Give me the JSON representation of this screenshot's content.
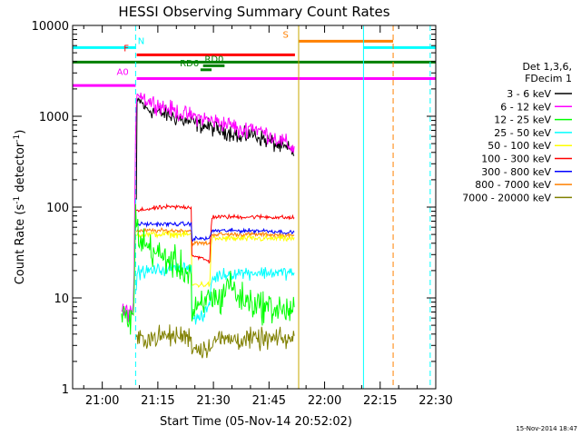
{
  "chart_data": {
    "type": "line",
    "title": "HESSI Observing Summary Count Rates",
    "xlabel": "Start Time (05-Nov-14 20:52:02)",
    "ylabel": "Count Rate (s⁻¹ detector⁻¹)",
    "ylabel_main": "Count Rate (s",
    "ylabel_sup1": "-1",
    "ylabel_mid": " detector",
    "ylabel_sup2": "-1",
    "ylabel_end": ")",
    "y_scale": "log",
    "x_unit": "minutes since 20:52:02",
    "xlim": [
      0,
      98
    ],
    "ylim": [
      1,
      10000
    ],
    "x_ticks": [
      {
        "x": 8,
        "label": "21:00"
      },
      {
        "x": 23,
        "label": "21:15"
      },
      {
        "x": 38,
        "label": "21:30"
      },
      {
        "x": 53,
        "label": "21:45"
      },
      {
        "x": 68,
        "label": "22:00"
      },
      {
        "x": 83,
        "label": "22:15"
      },
      {
        "x": 98,
        "label": "22:30"
      }
    ],
    "y_ticks": [
      {
        "v": 1,
        "label": "1"
      },
      {
        "v": 10,
        "label": "10"
      },
      {
        "v": 100,
        "label": "100"
      },
      {
        "v": 1000,
        "label": "1000"
      },
      {
        "v": 10000,
        "label": "10000"
      }
    ],
    "legend_title": [
      "Det 1,3,6,",
      "FDecim 1"
    ],
    "legend_position": "right",
    "series": [
      {
        "name": "3 - 6 keV",
        "color": "#000000",
        "noise": 0.08,
        "points": [
          [
            17.0,
            1
          ],
          [
            17.3,
            1300
          ],
          [
            18,
            1500
          ],
          [
            20,
            1200
          ],
          [
            25,
            1050
          ],
          [
            30,
            900
          ],
          [
            35,
            800
          ],
          [
            40,
            700
          ],
          [
            44,
            650
          ],
          [
            45,
            550
          ],
          [
            48,
            650
          ],
          [
            52,
            550
          ],
          [
            57,
            450
          ],
          [
            60,
            400
          ]
        ]
      },
      {
        "name": "6 - 12 keV",
        "color": "#ff00ff",
        "noise": 0.08,
        "points": [
          [
            13.0,
            7
          ],
          [
            14.0,
            7
          ],
          [
            15.0,
            7
          ],
          [
            16.5,
            7
          ],
          [
            17.0,
            800
          ],
          [
            17.3,
            1900
          ],
          [
            18,
            1800
          ],
          [
            20,
            1500
          ],
          [
            25,
            1250
          ],
          [
            30,
            1050
          ],
          [
            35,
            950
          ],
          [
            40,
            850
          ],
          [
            44,
            780
          ],
          [
            45,
            650
          ],
          [
            48,
            790
          ],
          [
            52,
            650
          ],
          [
            57,
            520
          ],
          [
            60,
            430
          ]
        ]
      },
      {
        "name": "12 - 25 keV",
        "color": "#00ff00",
        "noise": 0.15,
        "points": [
          [
            13.0,
            6
          ],
          [
            14.0,
            6
          ],
          [
            15.0,
            6
          ],
          [
            16.5,
            6
          ],
          [
            17.0,
            100
          ],
          [
            17.3,
            60
          ],
          [
            18,
            45
          ],
          [
            20,
            38
          ],
          [
            23,
            30
          ],
          [
            26,
            26
          ],
          [
            29,
            22
          ],
          [
            31,
            19
          ],
          [
            32.0,
            19
          ],
          [
            32.1,
            6
          ],
          [
            33,
            7
          ],
          [
            35,
            8
          ],
          [
            36,
            9
          ],
          [
            37,
            11
          ],
          [
            38,
            10
          ],
          [
            40,
            9.5
          ],
          [
            41,
            12
          ],
          [
            42,
            16
          ],
          [
            43,
            13
          ],
          [
            45,
            10
          ],
          [
            48,
            9
          ],
          [
            52,
            8
          ],
          [
            56,
            7.5
          ],
          [
            60,
            7
          ]
        ]
      },
      {
        "name": "25 - 50 keV",
        "color": "#00ffff",
        "noise": 0.06,
        "points": [
          [
            17.0,
            8
          ],
          [
            17.3,
            19
          ],
          [
            22,
            20
          ],
          [
            26,
            21
          ],
          [
            31,
            22
          ],
          [
            32.0,
            22
          ],
          [
            32.1,
            6
          ],
          [
            35,
            6
          ],
          [
            36,
            7
          ],
          [
            37,
            9
          ],
          [
            37.5,
            16
          ],
          [
            40,
            18
          ],
          [
            45,
            19
          ],
          [
            50,
            19
          ],
          [
            55,
            19
          ],
          [
            60,
            19
          ]
        ]
      },
      {
        "name": "50 - 100 keV",
        "color": "#ffff00",
        "noise": 0.03,
        "points": [
          [
            17.0,
            0
          ],
          [
            17.3,
            50
          ],
          [
            25,
            50
          ],
          [
            32,
            50
          ],
          [
            32.1,
            14
          ],
          [
            35,
            14
          ],
          [
            36,
            14
          ],
          [
            37,
            14
          ],
          [
            37.5,
            45
          ],
          [
            45,
            45
          ],
          [
            52,
            45
          ],
          [
            60,
            45
          ]
        ]
      },
      {
        "name": "100 - 300 keV",
        "color": "#ff0000",
        "noise": 0.02,
        "points": [
          [
            17.0,
            0
          ],
          [
            17.3,
            90
          ],
          [
            20,
            95
          ],
          [
            25,
            100
          ],
          [
            31,
            100
          ],
          [
            32.0,
            100
          ],
          [
            32.1,
            30
          ],
          [
            35,
            27
          ],
          [
            37,
            25
          ],
          [
            37.5,
            78
          ],
          [
            45,
            78
          ],
          [
            52,
            78
          ],
          [
            60,
            76
          ]
        ]
      },
      {
        "name": "300 - 800 keV",
        "color": "#0000ff",
        "noise": 0.02,
        "points": [
          [
            17.0,
            0
          ],
          [
            17.3,
            65
          ],
          [
            25,
            65
          ],
          [
            32,
            65
          ],
          [
            32.1,
            45
          ],
          [
            36,
            45
          ],
          [
            37,
            45
          ],
          [
            37.5,
            55
          ],
          [
            45,
            55
          ],
          [
            52,
            55
          ],
          [
            60,
            52
          ]
        ]
      },
      {
        "name": "800 - 7000 keV",
        "color": "#ff8000",
        "noise": 0.02,
        "points": [
          [
            17.0,
            0
          ],
          [
            17.3,
            55
          ],
          [
            25,
            55
          ],
          [
            32,
            55
          ],
          [
            32.1,
            40
          ],
          [
            36,
            40
          ],
          [
            37,
            40
          ],
          [
            37.5,
            50
          ],
          [
            45,
            50
          ],
          [
            52,
            50
          ],
          [
            60,
            48
          ]
        ]
      },
      {
        "name": "7000 - 20000 keV",
        "color": "#808000",
        "noise": 0.1,
        "points": [
          [
            17.0,
            0
          ],
          [
            17.3,
            3.5
          ],
          [
            25,
            3.8
          ],
          [
            32,
            3.8
          ],
          [
            32.1,
            2.8
          ],
          [
            37,
            2.8
          ],
          [
            37.5,
            3.5
          ],
          [
            45,
            3.5
          ],
          [
            52,
            3.5
          ],
          [
            60,
            3.5
          ]
        ]
      }
    ],
    "flag_bars": [
      {
        "label": "N",
        "color": "#00ffff",
        "y": 5700,
        "x0": 0,
        "x1": 17.0,
        "label_x": 18.5
      },
      {
        "label": "N",
        "color": "#00ffff",
        "y": 5700,
        "x0": 78.5,
        "x1": 98,
        "label_x": null
      },
      {
        "label": "S",
        "color": "#ff8000",
        "y": 6700,
        "x0": 61,
        "x1": 86.5,
        "label_x": 57.5
      },
      {
        "label": "F",
        "color": "#ff0000",
        "y": 4750,
        "x0": 17.3,
        "x1": 60,
        "label_x": 14.5
      },
      {
        "label": "",
        "color": "#008000",
        "y": 3950,
        "x0": 0,
        "x1": 98,
        "label_x": null
      },
      {
        "label": "RD0",
        "color": "#008000",
        "y": 3600,
        "x0": 35.2,
        "x1": 41,
        "label_x": 38.2
      },
      {
        "label": "RD6",
        "color": "#008000",
        "y": 3250,
        "x0": 34.5,
        "x1": 37.5,
        "label_x": 31.5
      },
      {
        "label": "A0",
        "color": "#ff00ff",
        "y": 2600,
        "x0": 17.3,
        "x1": 98,
        "label_x": 13.5
      },
      {
        "label": "",
        "color": "#ff00ff",
        "y": 2180,
        "x0": 0,
        "x1": 17.0,
        "label_x": null
      }
    ],
    "vlines": [
      {
        "x": 0,
        "color": "#00ffff",
        "dashed": false
      },
      {
        "x": 17.0,
        "color": "#00ffff",
        "dashed": true
      },
      {
        "x": 61,
        "color": "#c8a800",
        "dashed": false
      },
      {
        "x": 78.5,
        "color": "#00ffff",
        "dashed": false
      },
      {
        "x": 86.5,
        "color": "#ff8000",
        "dashed": true
      },
      {
        "x": 96.5,
        "color": "#00ffff",
        "dashed": true
      }
    ],
    "footer_date": "15-Nov-2014 18:47"
  }
}
